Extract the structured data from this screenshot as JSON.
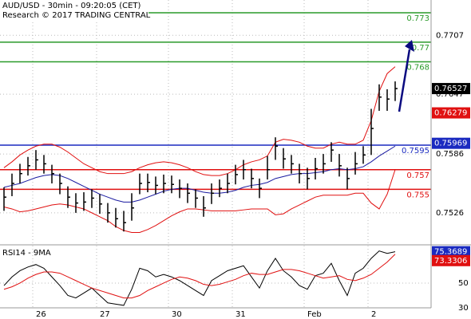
{
  "chart_data": [
    {
      "type": "ohlc",
      "title": "AUD/USD - 30min - 09:20:05 (CET)",
      "subtitle": "Research © 2017 TRADING CENTRAL",
      "categories": [
        null,
        null,
        null,
        null,
        "26",
        null,
        null,
        null,
        null,
        null,
        null,
        null,
        "27",
        null,
        null,
        null,
        null,
        null,
        null,
        null,
        null,
        "30",
        null,
        null,
        null,
        null,
        null,
        null,
        null,
        "31",
        null,
        null,
        null,
        null,
        null,
        null,
        null,
        null,
        "Feb",
        null,
        null,
        null,
        null,
        null,
        null,
        null,
        "2",
        null,
        null,
        null
      ],
      "high": [
        0.7552,
        0.7566,
        0.7576,
        0.7583,
        0.759,
        0.7585,
        0.7575,
        0.7566,
        0.7553,
        0.7546,
        0.7547,
        0.755,
        0.7545,
        0.7536,
        0.7531,
        0.7528,
        0.7546,
        0.7566,
        0.7566,
        0.7563,
        0.7565,
        0.7564,
        0.756,
        0.7556,
        0.755,
        0.7543,
        0.7556,
        0.756,
        0.7566,
        0.7575,
        0.758,
        0.7571,
        0.7561,
        0.7584,
        0.7603,
        0.7592,
        0.7585,
        0.7576,
        0.7572,
        0.7582,
        0.7586,
        0.7598,
        0.7586,
        0.7572,
        0.7588,
        0.7594,
        0.7632,
        0.7657,
        0.7652,
        0.766
      ],
      "low": [
        0.7528,
        0.7543,
        0.7556,
        0.7564,
        0.757,
        0.7566,
        0.7556,
        0.7545,
        0.7531,
        0.7526,
        0.7528,
        0.7531,
        0.7525,
        0.7516,
        0.7511,
        0.7507,
        0.7518,
        0.7545,
        0.7547,
        0.7545,
        0.7546,
        0.7546,
        0.7541,
        0.7536,
        0.7531,
        0.7522,
        0.7535,
        0.7542,
        0.7546,
        0.7555,
        0.756,
        0.7551,
        0.7541,
        0.756,
        0.758,
        0.7571,
        0.7566,
        0.7556,
        0.755,
        0.756,
        0.7566,
        0.7578,
        0.7563,
        0.755,
        0.7565,
        0.7576,
        0.7585,
        0.763,
        0.763,
        0.764
      ],
      "close": [
        0.7542,
        0.7556,
        0.7566,
        0.7574,
        0.758,
        0.7576,
        0.7566,
        0.7556,
        0.7542,
        0.7536,
        0.7537,
        0.7541,
        0.7535,
        0.7526,
        0.752,
        0.7516,
        0.7531,
        0.7556,
        0.7557,
        0.7554,
        0.7556,
        0.7555,
        0.7551,
        0.7546,
        0.7541,
        0.7531,
        0.7546,
        0.7551,
        0.7556,
        0.7565,
        0.757,
        0.7561,
        0.7551,
        0.757,
        0.7594,
        0.7581,
        0.7576,
        0.7566,
        0.7561,
        0.7571,
        0.7576,
        0.759,
        0.7574,
        0.7561,
        0.7576,
        0.7585,
        0.7612,
        0.7644,
        0.7642,
        0.76527
      ],
      "bar_color": "#000000",
      "lines": [
        {
          "color": "#e01010",
          "values": [
            0.7572,
            0.7578,
            0.7585,
            0.759,
            0.7594,
            0.7596,
            0.7596,
            0.7593,
            0.7588,
            0.7582,
            0.7576,
            0.7572,
            0.7568,
            0.7566,
            0.7566,
            0.7566,
            0.7568,
            0.7572,
            0.7575,
            0.7577,
            0.7578,
            0.7577,
            0.7575,
            0.7572,
            0.7568,
            0.7565,
            0.7564,
            0.7564,
            0.7566,
            0.757,
            0.7575,
            0.7578,
            0.758,
            0.7584,
            0.7598,
            0.7601,
            0.76,
            0.7598,
            0.7594,
            0.7592,
            0.7592,
            0.7596,
            0.7598,
            0.7596,
            0.7596,
            0.76,
            0.762,
            0.765,
            0.7668,
            0.7675
          ]
        },
        {
          "color": "#1a1aa0",
          "values": [
            0.7552,
            0.7554,
            0.7556,
            0.7559,
            0.7562,
            0.7564,
            0.7565,
            0.7564,
            0.7561,
            0.7557,
            0.7553,
            0.7549,
            0.7545,
            0.7542,
            0.7539,
            0.7537,
            0.7537,
            0.7539,
            0.7542,
            0.7545,
            0.7548,
            0.755,
            0.7551,
            0.7551,
            0.7549,
            0.7547,
            0.7546,
            0.7546,
            0.7547,
            0.7549,
            0.7552,
            0.7554,
            0.7555,
            0.7557,
            0.7561,
            0.7563,
            0.7565,
            0.7566,
            0.7566,
            0.7567,
            0.7568,
            0.757,
            0.7571,
            0.757,
            0.7571,
            0.7573,
            0.7578,
            0.7584,
            0.7589,
            0.7594
          ]
        },
        {
          "color": "#e01010",
          "values": [
            0.7532,
            0.753,
            0.7527,
            0.7528,
            0.753,
            0.7532,
            0.7534,
            0.7535,
            0.7534,
            0.7532,
            0.753,
            0.7526,
            0.7522,
            0.7518,
            0.7512,
            0.7508,
            0.7506,
            0.7506,
            0.7509,
            0.7513,
            0.7518,
            0.7523,
            0.7527,
            0.753,
            0.753,
            0.7529,
            0.7528,
            0.7528,
            0.7528,
            0.7528,
            0.7529,
            0.753,
            0.753,
            0.753,
            0.7524,
            0.7525,
            0.753,
            0.7534,
            0.7538,
            0.7542,
            0.7544,
            0.7544,
            0.7544,
            0.7544,
            0.7546,
            0.7546,
            0.7536,
            0.753,
            0.7545,
            0.757
          ]
        }
      ],
      "levels": [
        {
          "value": 0.773,
          "color": "#2a9a2a"
        },
        {
          "value": 0.77,
          "color": "#2a9a2a"
        },
        {
          "value": 0.768,
          "color": "#2a9a2a"
        },
        {
          "value": 0.7595,
          "color": "#1a2ac0"
        },
        {
          "value": 0.757,
          "color": "#e01010"
        },
        {
          "value": 0.755,
          "color": "#e01010"
        }
      ],
      "markers": [
        {
          "value": 0.76279,
          "color": "#e01010"
        },
        {
          "value": 0.75969,
          "color": "#1a2ac0"
        }
      ],
      "last_color": "#000000",
      "ylim": [
        0.7495,
        0.7743
      ],
      "yticks": [
        0.7526,
        0.7586,
        0.7647,
        0.7707
      ],
      "grid": true
    },
    {
      "type": "line",
      "title": "RSI14 - 9MA",
      "series": [
        {
          "color": "#000000",
          "values": [
            48,
            55,
            60,
            63,
            65,
            62,
            55,
            48,
            40,
            38,
            42,
            46,
            40,
            34,
            33,
            32,
            45,
            62,
            60,
            55,
            57,
            55,
            52,
            48,
            44,
            40,
            52,
            56,
            60,
            62,
            64,
            55,
            46,
            60,
            70,
            60,
            55,
            48,
            45,
            56,
            58,
            66,
            52,
            40,
            58,
            62,
            70,
            76,
            74,
            75.3689
          ]
        },
        {
          "color": "#e01010",
          "values": [
            45,
            47,
            50,
            54,
            57,
            59,
            59,
            58,
            55,
            52,
            49,
            46,
            44,
            42,
            40,
            38,
            38,
            40,
            44,
            47,
            50,
            53,
            55,
            54,
            52,
            49,
            48,
            49,
            51,
            53,
            56,
            58,
            57,
            57,
            59,
            61,
            61,
            60,
            58,
            56,
            54,
            55,
            56,
            53,
            52,
            54,
            57,
            62,
            67,
            73.3306
          ]
        }
      ],
      "marker_colors": [
        "#1a2ac0",
        "#e01010"
      ],
      "ylim": [
        30,
        79
      ],
      "yticks": [
        30,
        50
      ],
      "grid": true
    }
  ]
}
